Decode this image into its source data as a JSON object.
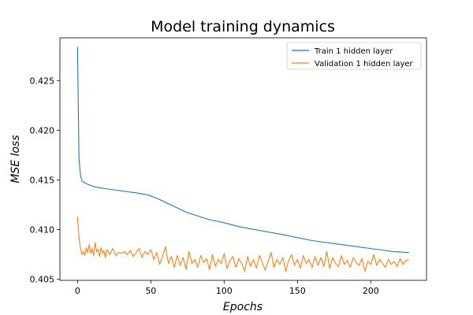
{
  "chart_data": {
    "type": "line",
    "title": "Model training dynamics",
    "xlabel": "Epochs",
    "ylabel": "MSE loss",
    "xlim": [
      -12,
      238
    ],
    "ylim": [
      0.4049,
      0.4293
    ],
    "xticks": [
      0,
      50,
      100,
      150,
      200
    ],
    "yticks": [
      0.405,
      0.41,
      0.415,
      0.42,
      0.425
    ],
    "ytick_labels": [
      "0.405",
      "0.410",
      "0.415",
      "0.420",
      "0.425"
    ],
    "grid": false,
    "legend_position": "top-right",
    "series": [
      {
        "name": "Train 1 hidden layer",
        "color": "#1f77b4",
        "x": [
          0,
          1,
          2,
          3,
          5,
          8,
          12,
          20,
          30,
          40,
          48,
          55,
          65,
          75,
          90,
          100,
          110,
          125,
          140,
          160,
          180,
          200,
          215,
          226
        ],
        "y": [
          0.4284,
          0.4172,
          0.4155,
          0.4149,
          0.4147,
          0.4145,
          0.4143,
          0.4141,
          0.4139,
          0.4137,
          0.4135,
          0.4131,
          0.4124,
          0.4117,
          0.411,
          0.4107,
          0.4103,
          0.4099,
          0.4095,
          0.4089,
          0.4085,
          0.4081,
          0.4078,
          0.4077
        ]
      },
      {
        "name": "Validation 1 hidden layer",
        "color": "#ff7f0e",
        "x": [
          0,
          1,
          2,
          3,
          4,
          5,
          6,
          7,
          8,
          9,
          10,
          11,
          12,
          13,
          14,
          15,
          16,
          17,
          18,
          19,
          20,
          22,
          24,
          26,
          28,
          30,
          32,
          34,
          36,
          38,
          40,
          42,
          44,
          46,
          48,
          50,
          52,
          54,
          56,
          58,
          60,
          62,
          64,
          66,
          68,
          70,
          72,
          74,
          76,
          78,
          80,
          82,
          84,
          86,
          88,
          90,
          92,
          94,
          96,
          98,
          100,
          102,
          104,
          106,
          108,
          110,
          112,
          114,
          116,
          118,
          120,
          122,
          124,
          126,
          128,
          130,
          132,
          134,
          136,
          138,
          140,
          142,
          144,
          146,
          148,
          150,
          152,
          154,
          156,
          158,
          160,
          162,
          164,
          166,
          168,
          170,
          172,
          174,
          176,
          178,
          180,
          182,
          184,
          186,
          188,
          190,
          192,
          194,
          196,
          198,
          200,
          202,
          204,
          206,
          208,
          210,
          212,
          214,
          216,
          218,
          220,
          222,
          224,
          226
        ],
        "y": [
          0.4113,
          0.4092,
          0.4081,
          0.4075,
          0.4078,
          0.4074,
          0.4082,
          0.4077,
          0.4085,
          0.4076,
          0.4081,
          0.4074,
          0.4087,
          0.4078,
          0.408,
          0.4073,
          0.4082,
          0.4076,
          0.4079,
          0.4072,
          0.408,
          0.4075,
          0.4081,
          0.4074,
          0.4077,
          0.4076,
          0.4078,
          0.4075,
          0.4079,
          0.4073,
          0.4077,
          0.4081,
          0.4072,
          0.4078,
          0.4075,
          0.408,
          0.407,
          0.4077,
          0.4065,
          0.4073,
          0.4083,
          0.4066,
          0.4073,
          0.4062,
          0.4074,
          0.4064,
          0.4072,
          0.406,
          0.4078,
          0.4066,
          0.407,
          0.4062,
          0.4074,
          0.4067,
          0.4071,
          0.406,
          0.4075,
          0.4063,
          0.407,
          0.4066,
          0.4076,
          0.4061,
          0.4069,
          0.4073,
          0.4062,
          0.4071,
          0.4066,
          0.4058,
          0.4073,
          0.4063,
          0.407,
          0.4061,
          0.4074,
          0.4067,
          0.4059,
          0.4068,
          0.4077,
          0.4062,
          0.407,
          0.4065,
          0.4072,
          0.4058,
          0.4069,
          0.4075,
          0.4064,
          0.407,
          0.4061,
          0.4074,
          0.4066,
          0.407,
          0.4062,
          0.4073,
          0.4064,
          0.4072,
          0.4063,
          0.4078,
          0.4061,
          0.4072,
          0.4066,
          0.4063,
          0.4074,
          0.4065,
          0.4069,
          0.4062,
          0.4072,
          0.4067,
          0.4064,
          0.4071,
          0.4058,
          0.4068,
          0.4065,
          0.4075,
          0.4064,
          0.407,
          0.4066,
          0.4062,
          0.407,
          0.4065,
          0.4068,
          0.4063,
          0.4071,
          0.4065,
          0.4069,
          0.407
        ]
      }
    ]
  }
}
